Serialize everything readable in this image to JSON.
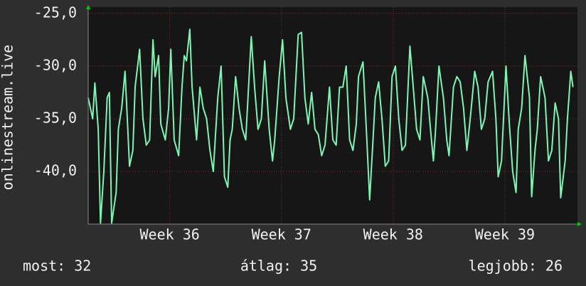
{
  "chart_data": {
    "type": "line",
    "y_label": "onlinestream.live",
    "color": "#7ff5b4",
    "grid": true,
    "xlim": [
      35.27,
      39.65
    ],
    "xticks": [
      {
        "value": 36,
        "label": "Week 36"
      },
      {
        "value": 37,
        "label": "Week 37"
      },
      {
        "value": 38,
        "label": "Week 38"
      },
      {
        "value": 39,
        "label": "Week 39"
      }
    ],
    "ylim": [
      -45,
      -24.4
    ],
    "yticks": [
      {
        "value": -25,
        "label": "-25,0"
      },
      {
        "value": -30,
        "label": "-30,0"
      },
      {
        "value": -35,
        "label": "-35,0"
      },
      {
        "value": -40,
        "label": "-40,0"
      }
    ],
    "x": [
      35.27,
      35.31,
      35.33,
      35.36,
      35.38,
      35.41,
      35.44,
      35.46,
      35.48,
      35.52,
      35.54,
      35.57,
      35.6,
      35.62,
      35.64,
      35.67,
      35.69,
      35.73,
      35.76,
      35.79,
      35.82,
      35.85,
      35.87,
      35.9,
      35.92,
      35.96,
      35.99,
      36.01,
      36.04,
      36.08,
      36.11,
      36.13,
      36.15,
      36.18,
      36.2,
      36.24,
      36.27,
      36.3,
      36.33,
      36.36,
      36.39,
      36.43,
      36.46,
      36.49,
      36.52,
      36.54,
      36.56,
      36.59,
      36.62,
      36.65,
      36.68,
      36.73,
      36.76,
      36.79,
      36.82,
      36.85,
      36.89,
      36.92,
      36.94,
      36.98,
      37.01,
      37.04,
      37.08,
      37.11,
      37.15,
      37.18,
      37.21,
      37.24,
      37.27,
      37.3,
      37.33,
      37.36,
      37.39,
      37.43,
      37.46,
      37.49,
      37.52,
      37.55,
      37.58,
      37.61,
      37.64,
      37.67,
      37.69,
      37.73,
      37.76,
      37.79,
      37.82,
      37.84,
      37.87,
      37.9,
      37.93,
      37.96,
      37.99,
      38.02,
      38.05,
      38.08,
      38.11,
      38.15,
      38.18,
      38.21,
      38.24,
      38.27,
      38.31,
      38.33,
      38.36,
      38.38,
      38.41,
      38.45,
      38.48,
      38.5,
      38.54,
      38.57,
      38.6,
      38.63,
      38.66,
      38.69,
      38.73,
      38.76,
      38.79,
      38.82,
      38.85,
      38.89,
      38.92,
      38.94,
      38.97,
      39.01,
      39.04,
      39.07,
      39.1,
      39.12,
      39.15,
      39.18,
      39.22,
      39.24,
      39.27,
      39.29,
      39.32,
      39.36,
      39.39,
      39.42,
      39.45,
      39.48,
      39.5,
      39.54,
      39.56,
      39.59,
      39.61
    ],
    "values": [
      -33,
      -35,
      -31.6,
      -36,
      -44.9,
      -40,
      -33,
      -32.5,
      -44.9,
      -42,
      -36,
      -34,
      -30.5,
      -35,
      -39.5,
      -38,
      -32,
      -28.4,
      -35,
      -37.5,
      -37,
      -27.5,
      -31,
      -29,
      -35.5,
      -37,
      -34,
      -28.4,
      -37,
      -38.5,
      -32,
      -29,
      -29.5,
      -26.5,
      -32,
      -37,
      -32,
      -34,
      -35,
      -38,
      -40,
      -33,
      -30,
      -40.5,
      -41.5,
      -37,
      -36,
      -31,
      -34,
      -36,
      -37,
      -27.2,
      -32,
      -36,
      -35,
      -29.5,
      -36,
      -39,
      -37,
      -31,
      -27.5,
      -33,
      -36,
      -35,
      -27,
      -26.8,
      -33,
      -35.5,
      -32.5,
      -36,
      -36.5,
      -38.5,
      -37.5,
      -32,
      -37,
      -37.5,
      -32,
      -32,
      -30,
      -37,
      -38,
      -35.5,
      -31,
      -29.6,
      -36,
      -42.7,
      -37,
      -33,
      -31.5,
      -35,
      -39.5,
      -39,
      -31,
      -30,
      -35,
      -38,
      -37.5,
      -28.1,
      -32,
      -36,
      -37,
      -31,
      -33,
      -35.5,
      -39,
      -36,
      -30,
      -33,
      -37,
      -38.5,
      -32,
      -31,
      -31.5,
      -34,
      -38,
      -35,
      -30.5,
      -32,
      -36,
      -35,
      -31.5,
      -30.5,
      -35,
      -40.5,
      -39,
      -30,
      -35.5,
      -40,
      -42,
      -36,
      -34,
      -29,
      -33,
      -42.4,
      -38,
      -36,
      -31,
      -33,
      -39,
      -38,
      -33.5,
      -35,
      -42.5,
      -39,
      -35,
      -30.5,
      -32
    ],
    "footer": [
      "most: 32",
      "átlag: 35",
      "legjobb: 26"
    ]
  }
}
